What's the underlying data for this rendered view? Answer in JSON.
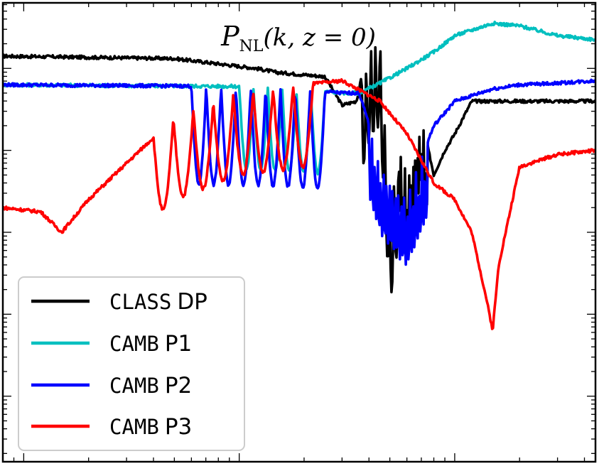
{
  "chart_data": {
    "type": "line",
    "title": "P_NL(k, z=0)",
    "title_main": "P",
    "title_sub": "NL",
    "title_args": "(k, z = 0)",
    "xscale": "log",
    "yscale": "log",
    "xlim": [
      0.008,
      4.5
    ],
    "ylim": [
      -2.8,
      2.8
    ],
    "xlabel": "",
    "ylabel": "",
    "tick_labels_visible": false,
    "legend_position": "bottom-left",
    "series": [
      {
        "name": "CLASS DP",
        "label_mono": "CLASS",
        "label_rest": "DP",
        "color": "#000000",
        "points": [
          [
            0.008,
            2.15
          ],
          [
            0.05,
            2.12
          ],
          [
            0.12,
            2.0
          ],
          [
            0.15,
            1.95
          ],
          [
            0.25,
            1.9
          ],
          [
            0.3,
            1.55
          ],
          [
            0.35,
            1.6
          ],
          [
            0.4,
            2.3
          ],
          [
            0.45,
            2.5
          ],
          [
            0.5,
            0.3
          ],
          [
            0.55,
            1.1
          ],
          [
            0.6,
            0.7
          ],
          [
            0.7,
            1.4
          ],
          [
            0.8,
            0.7
          ],
          [
            0.9,
            1.0
          ],
          [
            1.0,
            1.2
          ],
          [
            1.2,
            1.6
          ],
          [
            1.5,
            1.6
          ],
          [
            2.0,
            1.6
          ],
          [
            3.0,
            1.6
          ],
          [
            4.5,
            1.6
          ]
        ]
      },
      {
        "name": "CAMB P1",
        "label_mono": "CAMB",
        "label_rest": "P1",
        "color": "#00bfbf",
        "points": [
          [
            0.008,
            1.8
          ],
          [
            0.1,
            1.78
          ],
          [
            0.2,
            1.74
          ],
          [
            0.3,
            1.7
          ],
          [
            0.36,
            1.7
          ],
          [
            0.45,
            1.82
          ],
          [
            0.6,
            2.0
          ],
          [
            0.8,
            2.2
          ],
          [
            1.0,
            2.4
          ],
          [
            1.5,
            2.55
          ],
          [
            2.0,
            2.52
          ],
          [
            3.0,
            2.4
          ],
          [
            4.5,
            2.35
          ]
        ]
      },
      {
        "name": "CAMB P2",
        "label_mono": "CAMB",
        "label_rest": "P2",
        "color": "#0000ff",
        "points": [
          [
            0.008,
            1.8
          ],
          [
            0.1,
            1.78
          ],
          [
            0.2,
            1.74
          ],
          [
            0.3,
            1.7
          ],
          [
            0.36,
            1.7
          ],
          [
            0.45,
            0.9
          ],
          [
            0.55,
            0.6
          ],
          [
            0.6,
            0.5
          ],
          [
            0.7,
            0.9
          ],
          [
            0.8,
            1.3
          ],
          [
            1.0,
            1.6
          ],
          [
            1.5,
            1.75
          ],
          [
            2.0,
            1.8
          ],
          [
            3.0,
            1.82
          ],
          [
            4.5,
            1.85
          ]
        ]
      },
      {
        "name": "CAMB P3",
        "label_mono": "CAMB",
        "label_rest": "P3",
        "color": "#ff0000",
        "points": [
          [
            0.008,
            0.3
          ],
          [
            0.012,
            0.25
          ],
          [
            0.015,
            0.0
          ],
          [
            0.02,
            0.4
          ],
          [
            0.05,
            1.4
          ],
          [
            0.1,
            1.7
          ],
          [
            0.2,
            1.8
          ],
          [
            0.3,
            1.85
          ],
          [
            0.45,
            1.6
          ],
          [
            0.6,
            1.2
          ],
          [
            0.8,
            0.6
          ],
          [
            1.0,
            0.4
          ],
          [
            1.2,
            0.0
          ],
          [
            1.4,
            -0.8
          ],
          [
            1.5,
            -1.2
          ],
          [
            1.6,
            -0.4
          ],
          [
            2.0,
            0.8
          ],
          [
            3.0,
            0.95
          ],
          [
            4.5,
            1.0
          ]
        ]
      }
    ]
  }
}
